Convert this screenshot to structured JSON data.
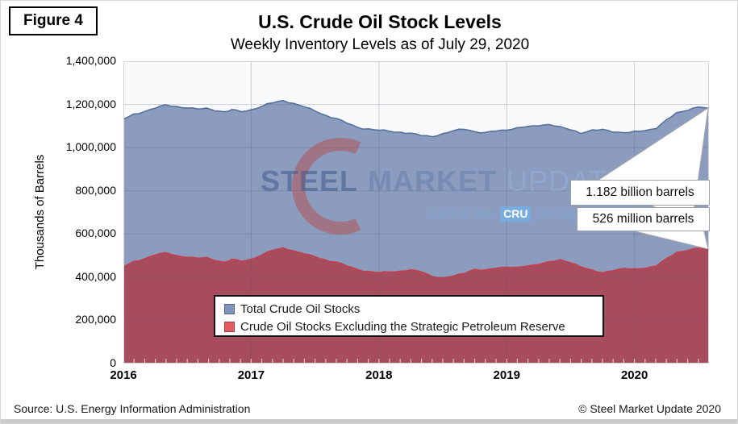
{
  "figure_label": "Figure 4",
  "title": "U.S. Crude Oil Stock Levels",
  "subtitle": "Weekly Inventory Levels as of July 29, 2020",
  "footer": {
    "source": "Source: U.S. Energy Information Administration",
    "copyright": "© Steel Market Update 2020"
  },
  "watermark": {
    "word1": "STEEL",
    "word2": "MARKET",
    "word3": "UPDATE",
    "tagline_prefix": "part of the",
    "tagline_brand": "CRU",
    "tagline_suffix": "Group",
    "crescent_color": "#c13a2c"
  },
  "annotations": [
    {
      "text": "1.182 billion barrels",
      "series": "Total Crude Oil Stocks"
    },
    {
      "text": "526 million barrels",
      "series": "Crude Oil Stocks Excluding the Strategic Petroleum Reserve"
    }
  ],
  "chart_data": {
    "type": "area",
    "title": "U.S. Crude Oil Stock Levels",
    "subtitle": "Weekly Inventory Levels as of July 29, 2020",
    "xlabel": "",
    "ylabel": "Thousands of Barrels",
    "xlim": [
      2016,
      2020.583
    ],
    "ylim": [
      0,
      1400000
    ],
    "grid": true,
    "legend_position": "inside-bottom-center",
    "y_tick_values": [
      1400000,
      1200000,
      1000000,
      800000,
      600000,
      400000,
      200000,
      0
    ],
    "y_tick_labels": [
      "1,400,000",
      "1,200,000",
      "1,000,000",
      "800,000",
      "600,000",
      "400,000",
      "200,000",
      "0"
    ],
    "x_tick_values": [
      2016,
      2017,
      2018,
      2019,
      2020
    ],
    "x_tick_labels": [
      "2016",
      "2017",
      "2018",
      "2019",
      "2020"
    ],
    "end_values": {
      "total": "1.182 billion barrels",
      "excl_spr": "526 million barrels"
    },
    "series": [
      {
        "name": "Total Crude Oil Stocks",
        "fill": "#8b9cbe",
        "line": "#54719e",
        "swatch": "#7f94b8",
        "swatch_border": "#4f648b",
        "points": [
          [
            2016.0,
            1131000
          ],
          [
            2016.08,
            1152000
          ],
          [
            2016.17,
            1169000
          ],
          [
            2016.25,
            1184000
          ],
          [
            2016.33,
            1196000
          ],
          [
            2016.42,
            1190000
          ],
          [
            2016.5,
            1185000
          ],
          [
            2016.58,
            1179000
          ],
          [
            2016.65,
            1181000
          ],
          [
            2016.75,
            1170000
          ],
          [
            2016.79,
            1166000
          ],
          [
            2016.85,
            1178000
          ],
          [
            2016.92,
            1167000
          ],
          [
            2017.0,
            1175000
          ],
          [
            2017.08,
            1192000
          ],
          [
            2017.17,
            1208000
          ],
          [
            2017.25,
            1218000
          ],
          [
            2017.33,
            1206000
          ],
          [
            2017.42,
            1187000
          ],
          [
            2017.5,
            1170000
          ],
          [
            2017.58,
            1150000
          ],
          [
            2017.67,
            1133000
          ],
          [
            2017.75,
            1113000
          ],
          [
            2017.83,
            1094000
          ],
          [
            2017.92,
            1085000
          ],
          [
            2018.0,
            1080000
          ],
          [
            2018.08,
            1076000
          ],
          [
            2018.17,
            1071000
          ],
          [
            2018.25,
            1065000
          ],
          [
            2018.33,
            1056000
          ],
          [
            2018.42,
            1053000
          ],
          [
            2018.5,
            1063000
          ],
          [
            2018.58,
            1077000
          ],
          [
            2018.67,
            1088000
          ],
          [
            2018.75,
            1074000
          ],
          [
            2018.83,
            1068000
          ],
          [
            2018.92,
            1079000
          ],
          [
            2019.0,
            1083000
          ],
          [
            2019.08,
            1091000
          ],
          [
            2019.17,
            1097000
          ],
          [
            2019.25,
            1104000
          ],
          [
            2019.33,
            1108000
          ],
          [
            2019.42,
            1094000
          ],
          [
            2019.5,
            1084000
          ],
          [
            2019.58,
            1068000
          ],
          [
            2019.67,
            1079000
          ],
          [
            2019.75,
            1083000
          ],
          [
            2019.83,
            1075000
          ],
          [
            2019.92,
            1068000
          ],
          [
            2020.0,
            1072000
          ],
          [
            2020.08,
            1079000
          ],
          [
            2020.17,
            1090000
          ],
          [
            2020.25,
            1126000
          ],
          [
            2020.33,
            1160000
          ],
          [
            2020.42,
            1176000
          ],
          [
            2020.5,
            1188000
          ],
          [
            2020.583,
            1182000
          ]
        ]
      },
      {
        "name": "Crude Oil Stocks Excluding the Strategic Petroleum Reserve",
        "fill": "#a74c5c",
        "line": "#c2414f",
        "swatch": "#e05c5e",
        "swatch_border": "#a83a42",
        "points": [
          [
            2016.0,
            448000
          ],
          [
            2016.08,
            470000
          ],
          [
            2016.17,
            487000
          ],
          [
            2016.25,
            504000
          ],
          [
            2016.33,
            512000
          ],
          [
            2016.42,
            500000
          ],
          [
            2016.5,
            493000
          ],
          [
            2016.58,
            488000
          ],
          [
            2016.65,
            490000
          ],
          [
            2016.75,
            474000
          ],
          [
            2016.79,
            470000
          ],
          [
            2016.85,
            484000
          ],
          [
            2016.92,
            475000
          ],
          [
            2017.0,
            483000
          ],
          [
            2017.08,
            503000
          ],
          [
            2017.17,
            525000
          ],
          [
            2017.25,
            535000
          ],
          [
            2017.33,
            523000
          ],
          [
            2017.42,
            506000
          ],
          [
            2017.5,
            495000
          ],
          [
            2017.58,
            480000
          ],
          [
            2017.67,
            468000
          ],
          [
            2017.75,
            452000
          ],
          [
            2017.83,
            436000
          ],
          [
            2017.92,
            425000
          ],
          [
            2018.0,
            420000
          ],
          [
            2018.08,
            424000
          ],
          [
            2018.17,
            428000
          ],
          [
            2018.25,
            433000
          ],
          [
            2018.33,
            425000
          ],
          [
            2018.42,
            404000
          ],
          [
            2018.5,
            396000
          ],
          [
            2018.58,
            404000
          ],
          [
            2018.67,
            420000
          ],
          [
            2018.75,
            437000
          ],
          [
            2018.83,
            431000
          ],
          [
            2018.92,
            443000
          ],
          [
            2019.0,
            448000
          ],
          [
            2019.08,
            445000
          ],
          [
            2019.17,
            451000
          ],
          [
            2019.25,
            461000
          ],
          [
            2019.33,
            472000
          ],
          [
            2019.42,
            478000
          ],
          [
            2019.5,
            468000
          ],
          [
            2019.58,
            450000
          ],
          [
            2019.67,
            430000
          ],
          [
            2019.75,
            419000
          ],
          [
            2019.83,
            432000
          ],
          [
            2019.92,
            440000
          ],
          [
            2020.0,
            435000
          ],
          [
            2020.08,
            441000
          ],
          [
            2020.17,
            453000
          ],
          [
            2020.25,
            484000
          ],
          [
            2020.33,
            513000
          ],
          [
            2020.42,
            526000
          ],
          [
            2020.5,
            535000
          ],
          [
            2020.583,
            526000
          ]
        ]
      }
    ]
  }
}
